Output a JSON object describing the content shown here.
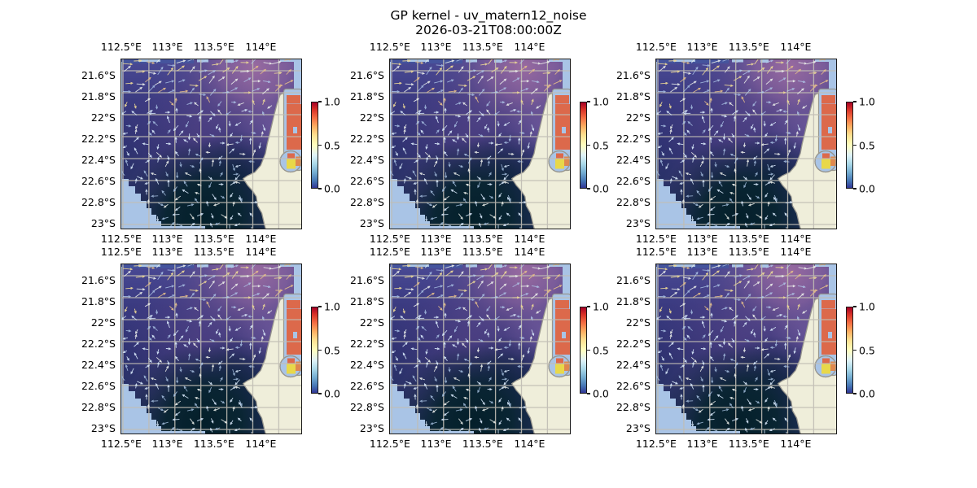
{
  "figure": {
    "title": "GP kernel - uv_matern12_noise",
    "subtitle": "2026-03-21T08:00:00Z"
  },
  "chart_data": {
    "type": "heatmap",
    "title": "GP kernel - uv_matern12_noise",
    "subtitle": "2026-03-21T08:00:00Z",
    "layout": {
      "rows": 2,
      "cols": 3,
      "n_panels": 6,
      "identical_panels": true,
      "legend": "none",
      "grid": true
    },
    "x_axis": "longitude",
    "y_axis": "latitude",
    "x_tick_labels": [
      "112.5°E",
      "113°E",
      "113.5°E",
      "114°E"
    ],
    "y_tick_labels": [
      "21.6°S",
      "21.8°S",
      "22°S",
      "22.2°S",
      "22.4°S",
      "22.6°S",
      "22.8°S",
      "23°S"
    ],
    "lon_range_est": [
      112.47,
      114.45
    ],
    "lat_range_est": [
      21.45,
      23.05
    ],
    "colorbar": {
      "orientation": "vertical",
      "range": [
        0.0,
        1.0
      ],
      "tick_labels": [
        "1.0",
        "0.5",
        "0.0"
      ],
      "colormap": "RdYlBu_r"
    },
    "overlays": [
      "quiver current vectors (whitish/yellow arrows)",
      "land mask (cream, Exmouth Gulf coastline)",
      "no-data mask (light blue)",
      "grey tile grid"
    ],
    "field_description": "scalar field 0-1 over ocean: dark indigo base, purple band at north, near-black teal at south, red/orange/yellow cells inside gulf"
  },
  "panels": [
    {
      "id": "r1c1"
    },
    {
      "id": "r1c2"
    },
    {
      "id": "r1c3"
    },
    {
      "id": "r2c1"
    },
    {
      "id": "r2c2"
    },
    {
      "id": "r2c3"
    }
  ],
  "colors": {
    "ocean_base_top": "#4a4a95",
    "ocean_base_mid": "#303373",
    "ocean_base_bottom": "#223058",
    "ocean_purple": "#9a6ba0",
    "ocean_magenta": "#5a4487",
    "ocean_dark": "#041f2a",
    "mask_light_blue": "#a9c4e6",
    "land": "#efeeda",
    "coastline": "#98968e",
    "grid_line": "#c0bdb4",
    "cell_red": "#dc694b",
    "cell_orange": "#df884e",
    "cell_yellow": "#e8d84a",
    "border": "#1a1a1a",
    "colorbar_stops": [
      "#a50026",
      "#d73027",
      "#f46d43",
      "#fdae61",
      "#fee090",
      "#ffffbf",
      "#e0f3f8",
      "#abd9e9",
      "#74add1",
      "#4575b4",
      "#313695"
    ]
  }
}
